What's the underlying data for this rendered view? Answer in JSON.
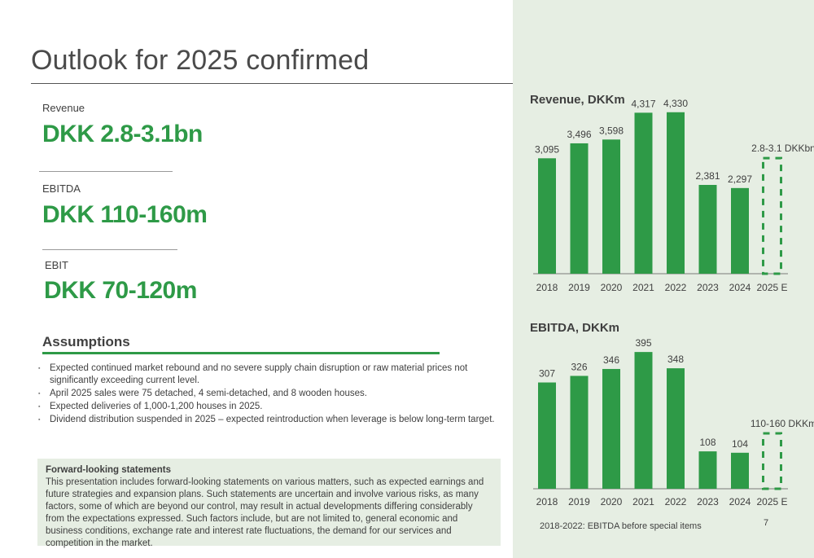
{
  "slide": {
    "title": "Outlook for 2025 confirmed",
    "page_number": "7"
  },
  "kpis": [
    {
      "label": "Revenue",
      "value": "DKK 2.8-3.1bn"
    },
    {
      "label": "EBITDA",
      "value": "DKK 110-160m"
    },
    {
      "label": "EBIT",
      "value": "DKK 70-120m"
    }
  ],
  "assumptions": {
    "title": "Assumptions",
    "items": [
      "Expected continued market rebound and no severe supply chain disruption or raw material prices not significantly exceeding current level.",
      "April 2025 sales were 75 detached, 4 semi-detached, and 8 wooden houses.",
      "Expected deliveries of 1,000-1,200 houses in 2025.",
      "Dividend distribution suspended in 2025 – expected reintroduction when leverage is below long-term target."
    ]
  },
  "forward_looking": {
    "title": "Forward-looking statements",
    "text": "This presentation includes forward-looking statements on various matters, such as expected earnings and future strategies and expansion plans. Such statements are uncertain and involve various risks, as many factors, some of which are beyond our control, may result in actual developments differing considerably from the expectations expressed. Such factors include, but are not limited to, general economic and business conditions, exchange rate and interest rate fluctuations, the demand for our services and competition in the market."
  },
  "colors": {
    "accent": "#2e9a47",
    "panel": "#e6eee3"
  },
  "chart_data": [
    {
      "type": "bar",
      "title": "Revenue, DKKm",
      "categories": [
        "2018",
        "2019",
        "2020",
        "2021",
        "2022",
        "2023",
        "2024",
        "2025 E"
      ],
      "values": [
        3095,
        3496,
        3598,
        4317,
        4330,
        2381,
        2297,
        null
      ],
      "labels": [
        "3,095",
        "3,496",
        "3,598",
        "4,317",
        "4,330",
        "2,381",
        "2,297",
        ""
      ],
      "forecast": {
        "category": "2025 E",
        "range": [
          2800,
          3100
        ],
        "label": "2.8-3.1 DKKbn",
        "style": "dashed"
      },
      "ylim": [
        0,
        4500
      ]
    },
    {
      "type": "bar",
      "title": "EBITDA, DKKm",
      "categories": [
        "2018",
        "2019",
        "2020",
        "2021",
        "2022",
        "2023",
        "2024",
        "2025 E"
      ],
      "values": [
        307,
        326,
        346,
        395,
        348,
        108,
        104,
        null
      ],
      "labels": [
        "307",
        "326",
        "346",
        "395",
        "348",
        "108",
        "104",
        ""
      ],
      "forecast": {
        "category": "2025 E",
        "range": [
          110,
          160
        ],
        "label": "110-160 DKKm",
        "style": "dashed"
      },
      "ylim": [
        0,
        400
      ],
      "footnote": "2018-2022: EBITDA before special items"
    }
  ]
}
